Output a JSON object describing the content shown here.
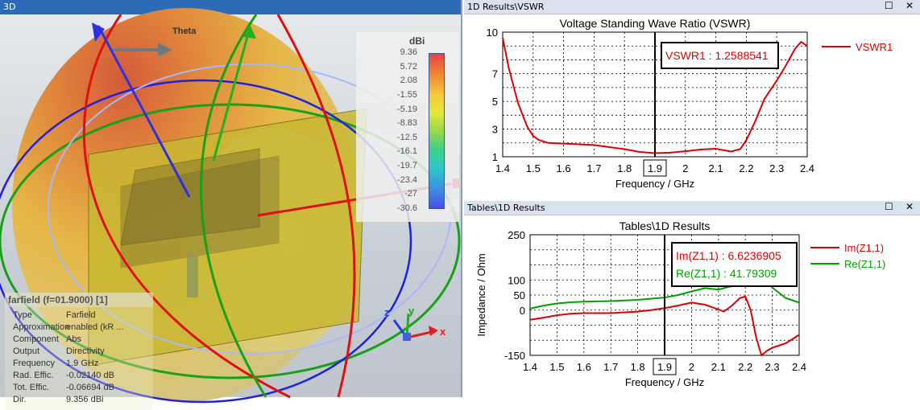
{
  "panes": {
    "view3d": {
      "title": "3D"
    },
    "vswr": {
      "title": "1D Results\\VSWR"
    },
    "impedance": {
      "title": "Tables\\1D Results"
    }
  },
  "window_buttons": {
    "maximize": "☐",
    "close": "✕"
  },
  "view3d": {
    "pattern_label": "Theta",
    "colorbar": {
      "unit": "dBi",
      "ticks": [
        "9.36",
        "5.72",
        "2.08",
        "-1.55",
        "-5.19",
        "-8.83",
        "-12.5",
        "-16.1",
        "-19.7",
        "-23.4",
        "-27",
        "-30.6"
      ]
    },
    "axis_labels": {
      "x": "x",
      "y": "y",
      "z": "z"
    },
    "info": {
      "title": "farfield (f=01.9000) [1]",
      "rows": [
        {
          "key": "Type",
          "value": "Farfield"
        },
        {
          "key": "Approximation",
          "value": "enabled (kR ..."
        },
        {
          "key": "Component",
          "value": "Abs"
        },
        {
          "key": "Output",
          "value": "Directivity"
        },
        {
          "key": "Frequency",
          "value": "1.9 GHz"
        },
        {
          "key": "Rad. Effic.",
          "value": "-0.02140 dB"
        },
        {
          "key": "Tot. Effic.",
          "value": "-0.06694 dB"
        },
        {
          "key": "Dir.",
          "value": "9.356 dBi"
        }
      ]
    }
  },
  "chart_data": [
    {
      "type": "line",
      "title": "Voltage Standing Wave Ratio (VSWR)",
      "xlabel": "Frequency / GHz",
      "ylabel": "",
      "xlim": [
        1.4,
        2.4
      ],
      "ylim": [
        1,
        10
      ],
      "x_ticks": [
        "1.4",
        "1.5",
        "1.6",
        "1.7",
        "1.8",
        "1.9",
        "2",
        "2.1",
        "2.2",
        "2.3",
        "2.4"
      ],
      "y_ticks": [
        "1",
        "3",
        "5",
        "7",
        "10"
      ],
      "marker_x": 1.9,
      "marker_label": "1.9",
      "marker_readout": "VSWR1 : 1.2588541",
      "legend_position": "right",
      "grid": true,
      "series": [
        {
          "name": "VSWR1",
          "color": "#e00000",
          "x": [
            1.4,
            1.42,
            1.45,
            1.48,
            1.5,
            1.52,
            1.55,
            1.6,
            1.7,
            1.8,
            1.85,
            1.9,
            1.95,
            2.0,
            2.05,
            2.1,
            2.15,
            2.18,
            2.2,
            2.23,
            2.26,
            2.3,
            2.33,
            2.36,
            2.38,
            2.4
          ],
          "values": [
            9.6,
            7.4,
            4.9,
            3.2,
            2.5,
            2.2,
            2.0,
            1.95,
            1.85,
            1.55,
            1.35,
            1.26,
            1.3,
            1.4,
            1.52,
            1.58,
            1.38,
            1.55,
            2.2,
            3.6,
            5.2,
            6.5,
            7.6,
            8.8,
            9.3,
            9.0
          ]
        }
      ]
    },
    {
      "type": "line",
      "title": "Tables\\1D Results",
      "xlabel": "Frequency / GHz",
      "ylabel": "Impedance / Ohm",
      "xlim": [
        1.4,
        2.4
      ],
      "ylim": [
        -150,
        250
      ],
      "x_ticks": [
        "1.4",
        "1.5",
        "1.6",
        "1.7",
        "1.8",
        "1.9",
        "2",
        "2.1",
        "2.2",
        "2.3",
        "2.4"
      ],
      "y_ticks": [
        "-150",
        "0",
        "50",
        "100",
        "250"
      ],
      "marker_x": 1.9,
      "marker_label": "1.9",
      "marker_readouts": [
        "Im(Z1,1) : 6.6236905",
        "Re(Z1,1) : 41.79309"
      ],
      "legend_position": "right",
      "grid": true,
      "series": [
        {
          "name": "Im(Z1,1)",
          "color": "#e00000",
          "x": [
            1.4,
            1.45,
            1.5,
            1.55,
            1.6,
            1.7,
            1.8,
            1.85,
            1.9,
            1.95,
            2.0,
            2.05,
            2.1,
            2.12,
            2.15,
            2.18,
            2.2,
            2.22,
            2.24,
            2.26,
            2.28,
            2.3,
            2.35,
            2.4
          ],
          "values": [
            -32,
            -25,
            -17,
            -12,
            -10,
            -10,
            -5,
            0,
            6.6,
            15,
            25,
            18,
            2,
            -5,
            15,
            40,
            45,
            0,
            -90,
            -150,
            -135,
            -125,
            -110,
            -82
          ]
        },
        {
          "name": "Re(Z1,1)",
          "color": "#00a000",
          "x": [
            1.4,
            1.45,
            1.5,
            1.55,
            1.6,
            1.7,
            1.8,
            1.85,
            1.9,
            1.95,
            2.0,
            2.05,
            2.1,
            2.15,
            2.2,
            2.25,
            2.3,
            2.35,
            2.4
          ],
          "values": [
            5,
            15,
            22,
            26,
            28,
            30,
            34,
            38,
            41.8,
            50,
            62,
            73,
            68,
            80,
            110,
            120,
            75,
            40,
            25
          ]
        }
      ]
    }
  ]
}
